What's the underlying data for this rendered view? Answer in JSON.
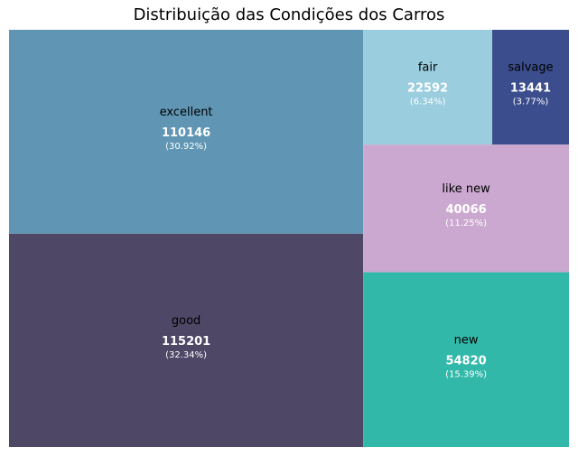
{
  "chart_data": {
    "type": "treemap",
    "title": "Distribuição das Condições dos Carros",
    "items": [
      {
        "label": "excellent",
        "value": 110146,
        "value_text": "110146",
        "pct_text": "(30.92%)",
        "color": "#6096b4"
      },
      {
        "label": "good",
        "value": 115201,
        "value_text": "115201",
        "pct_text": "(32.34%)",
        "color": "#4e4766"
      },
      {
        "label": "fair",
        "value": 22592,
        "value_text": "22592",
        "pct_text": "(6.34%)",
        "color": "#9acdde"
      },
      {
        "label": "salvage",
        "value": 13441,
        "value_text": "13441",
        "pct_text": "(3.77%)",
        "color": "#3b4d8c"
      },
      {
        "label": "like new",
        "value": 40066,
        "value_text": "40066",
        "pct_text": "(11.25%)",
        "color": "#cba8d0"
      },
      {
        "label": "new",
        "value": 54820,
        "value_text": "54820",
        "pct_text": "(15.39%)",
        "color": "#32b8a9"
      }
    ]
  }
}
